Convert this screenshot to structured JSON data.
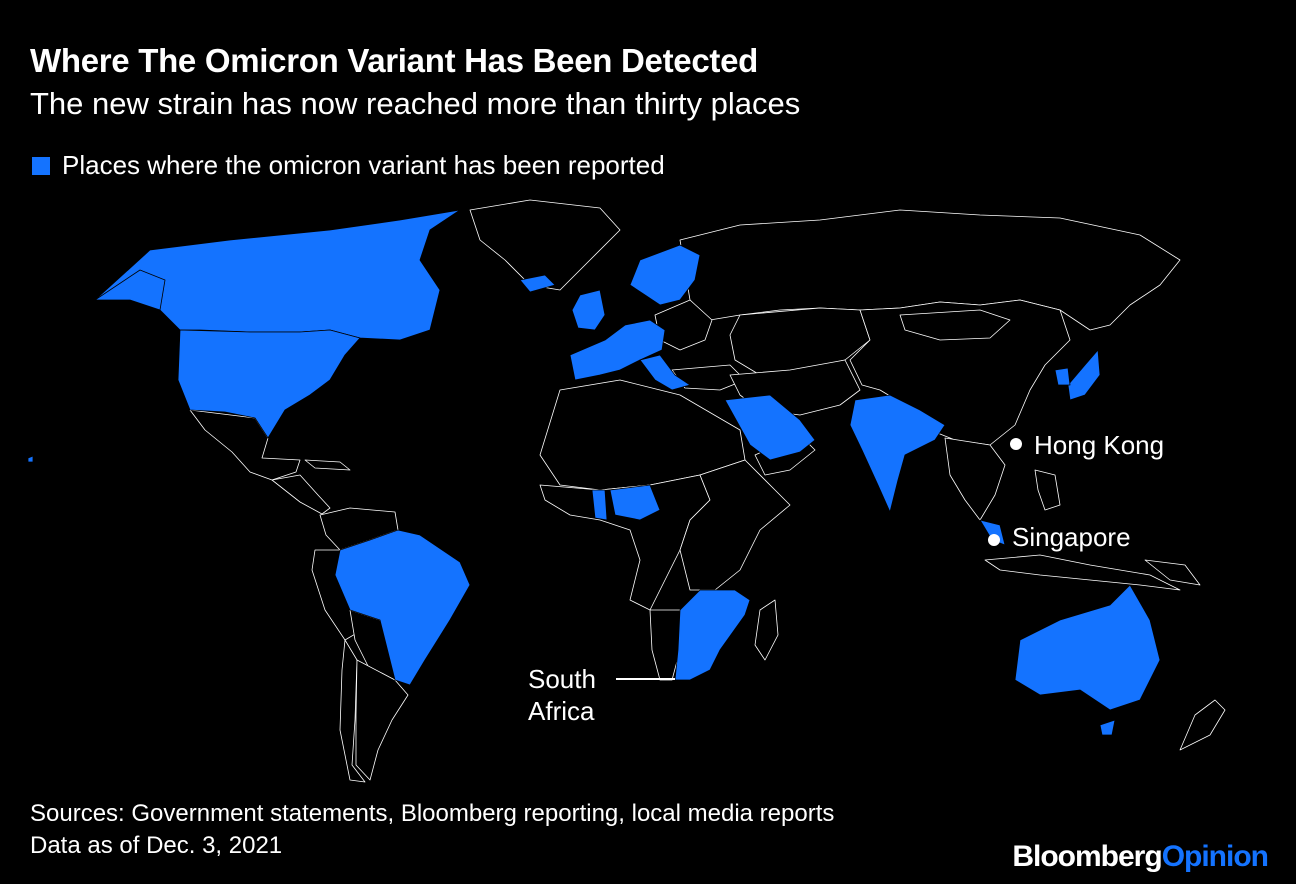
{
  "title": "Where The Omicron Variant Has Been Detected",
  "subtitle": "The new strain has now reached more than thirty places",
  "legend": {
    "label": "Places where the omicron variant has been reported",
    "color": "#1473ff"
  },
  "map": {
    "background": "#000000",
    "reported_color": "#1473ff",
    "other_fill": "#000000",
    "border_color": "#ffffff",
    "callouts": {
      "hong_kong": "Hong Kong",
      "singapore": "Singapore",
      "south_africa_line1": "South",
      "south_africa_line2": "Africa"
    },
    "reported_places": [
      "Canada",
      "United States",
      "Brazil",
      "United Kingdom",
      "Ireland",
      "Portugal",
      "Spain",
      "France",
      "Belgium",
      "Netherlands",
      "Germany",
      "Denmark",
      "Norway",
      "Sweden",
      "Finland",
      "Iceland",
      "Switzerland",
      "Austria",
      "Italy",
      "Czech Republic",
      "Greece",
      "Israel",
      "Saudi Arabia",
      "United Arab Emirates",
      "India",
      "Nepal",
      "Japan",
      "South Korea",
      "Malaysia",
      "Ghana",
      "Nigeria",
      "Mozambique",
      "Zimbabwe",
      "Botswana",
      "South Africa",
      "Australia",
      "Reunion"
    ]
  },
  "footer": {
    "sources": "Sources: Government statements, Bloomberg reporting, local media reports",
    "date": "Data as of Dec. 3, 2021"
  },
  "brand": {
    "part1": "Bloomberg",
    "part2": "Opinion",
    "part2_color": "#1473ff"
  }
}
